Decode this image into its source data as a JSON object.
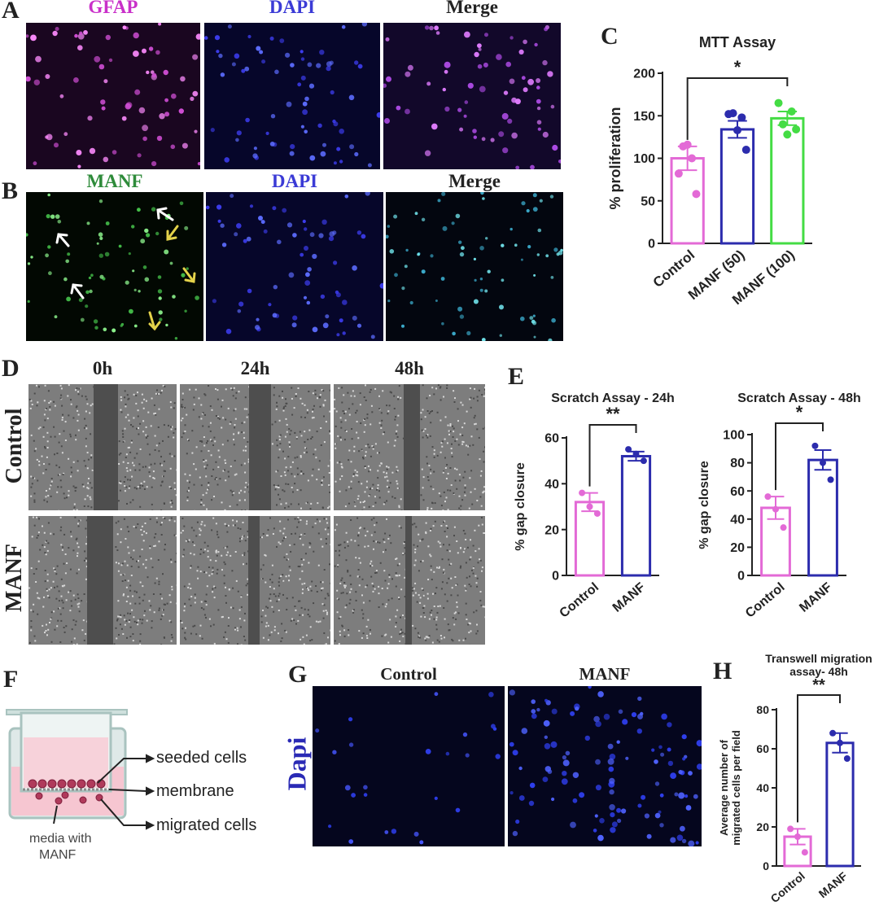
{
  "panels": {
    "A": {
      "letter": "A",
      "channels": [
        "GFAP",
        "DAPI",
        "Merge"
      ],
      "colors": [
        "#c930c9",
        "#3b3bd6",
        "#222222"
      ]
    },
    "B": {
      "letter": "B",
      "channels": [
        "MANF",
        "DAPI",
        "Merge"
      ],
      "colors": [
        "#2e8b3a",
        "#3b3bd6",
        "#222222"
      ]
    },
    "C": {
      "letter": "C"
    },
    "D": {
      "letter": "D",
      "timepoints": [
        "0h",
        "24h",
        "48h"
      ],
      "rows": [
        "Control",
        "MANF"
      ]
    },
    "E": {
      "letter": "E"
    },
    "F": {
      "letter": "F",
      "labels": {
        "seeded": "seeded cells",
        "membrane": "membrane",
        "migrated": "migrated cells",
        "media_line1": "media with",
        "media_line2": "MANF"
      }
    },
    "G": {
      "letter": "G",
      "columns": [
        "Control",
        "MANF"
      ],
      "row_label": "Dapi"
    },
    "H": {
      "letter": "H"
    }
  },
  "chart_data": [
    {
      "id": "C",
      "type": "bar",
      "title": "MTT Assay",
      "ylabel": "% proliferation",
      "categories": [
        "Control",
        "MANF (50)",
        "MANF (100)"
      ],
      "values": [
        100,
        134,
        147
      ],
      "sem": [
        14,
        10,
        8
      ],
      "points": [
        [
          82,
          114,
          116,
          100,
          58
        ],
        [
          152,
          153,
          133,
          148,
          110
        ],
        [
          165,
          140,
          128,
          155,
          134
        ]
      ],
      "colors": [
        "#e36ad6",
        "#2c2cad",
        "#44dc44"
      ],
      "ylim": [
        0,
        200
      ],
      "yticks": [
        0,
        50,
        100,
        150,
        200
      ],
      "significance": {
        "from": 0,
        "to": 2,
        "label": "*"
      }
    },
    {
      "id": "E1",
      "type": "bar",
      "title": "Scratch Assay - 24h",
      "ylabel": "% gap closure",
      "categories": [
        "Control",
        "MANF"
      ],
      "values": [
        32,
        52
      ],
      "sem": [
        4,
        2
      ],
      "points": [
        [
          36,
          30,
          27
        ],
        [
          55,
          53,
          50
        ]
      ],
      "colors": [
        "#e36ad6",
        "#2c2cad"
      ],
      "ylim": [
        0,
        60
      ],
      "yticks": [
        0,
        20,
        40,
        60
      ],
      "significance": {
        "from": 0,
        "to": 1,
        "label": "**"
      }
    },
    {
      "id": "E2",
      "type": "bar",
      "title": "Scratch Assay - 48h",
      "ylabel": "% gap closure",
      "categories": [
        "Control",
        "MANF"
      ],
      "values": [
        48,
        82
      ],
      "sem": [
        8,
        7
      ],
      "points": [
        [
          56,
          47,
          34
        ],
        [
          92,
          80,
          68
        ]
      ],
      "colors": [
        "#e36ad6",
        "#2c2cad"
      ],
      "ylim": [
        0,
        100
      ],
      "yticks": [
        0,
        20,
        40,
        60,
        80,
        100
      ],
      "significance": {
        "from": 0,
        "to": 1,
        "label": "*"
      }
    },
    {
      "id": "H",
      "type": "bar",
      "title": "Transwell migration assay- 48h",
      "ylabel": "Average number of migrated cells per field",
      "categories": [
        "Control",
        "MANF"
      ],
      "values": [
        15,
        63
      ],
      "sem": [
        4,
        5
      ],
      "points": [
        [
          19,
          15,
          7
        ],
        [
          68,
          63,
          55
        ]
      ],
      "colors": [
        "#e36ad6",
        "#2c2cad"
      ],
      "ylim": [
        0,
        80
      ],
      "yticks": [
        0,
        20,
        40,
        60,
        80
      ],
      "significance": {
        "from": 0,
        "to": 1,
        "label": "**"
      }
    }
  ]
}
